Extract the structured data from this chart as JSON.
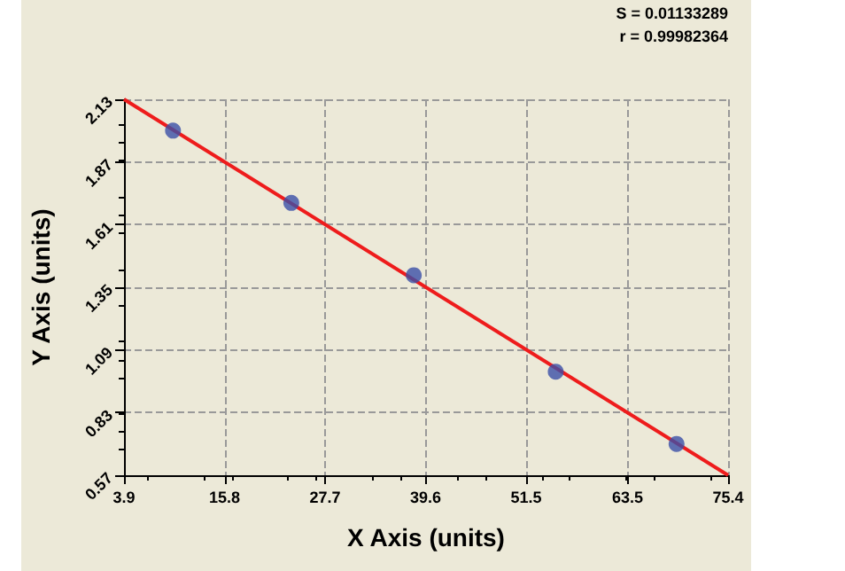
{
  "chart_data": {
    "type": "scatter",
    "xlabel": "X Axis (units)",
    "ylabel": "Y Axis (units)",
    "annotations": [
      "S = 0.01133289",
      "r = 0.99982364"
    ],
    "series": [
      {
        "color": "#3b4fa8",
        "x": [
          9.7,
          23.7,
          38.2,
          55.0,
          69.3
        ],
        "values": [
          2.0,
          1.7,
          1.4,
          1.0,
          0.7
        ]
      },
      {
        "type": "line",
        "marker": "none",
        "color": "#ee1c1c",
        "x": [
          3.9,
          75.4
        ],
        "values": [
          2.13,
          0.57
        ]
      }
    ],
    "xlim": [
      3.9,
      75.4
    ],
    "xticks": [
      3.9,
      15.8,
      27.7,
      39.6,
      51.5,
      63.5,
      75.4
    ],
    "ylim": [
      0.57,
      2.13
    ],
    "yticks": [
      0.57,
      0.83,
      1.09,
      1.35,
      1.61,
      1.87,
      2.13
    ],
    "grid": true,
    "marker": "circle",
    "line_style": "solid"
  }
}
